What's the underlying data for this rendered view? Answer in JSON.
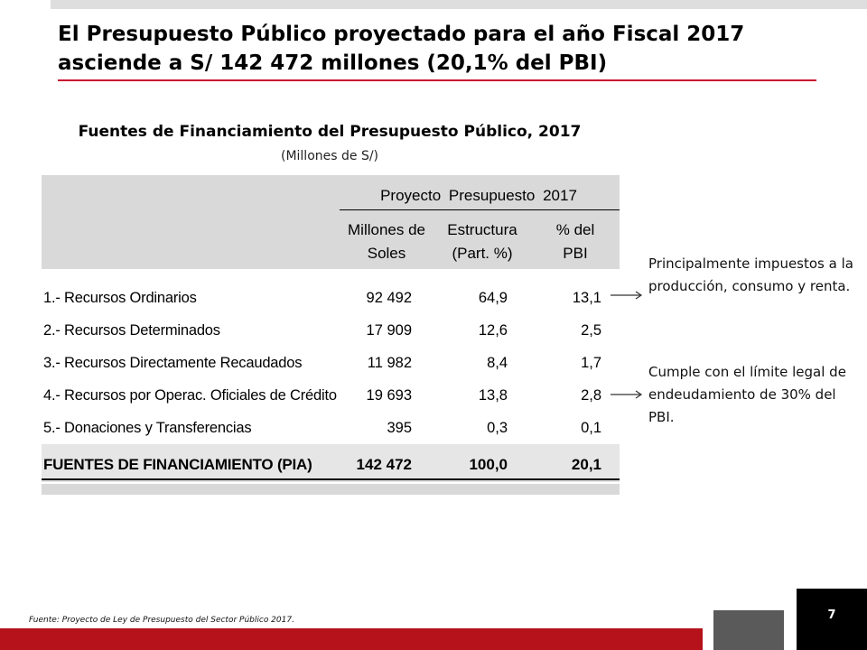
{
  "slide": {
    "title": "El Presupuesto Público proyectado para el año Fiscal 2017 asciende a S/ 142 472 millones (20,1% del PBI)",
    "page_number": "7",
    "source": "Fuente: Proyecto de Ley de Presupuesto del Sector Público 2017."
  },
  "table": {
    "title": "Fuentes de Financiamiento del Presupuesto Público, 2017",
    "subtitle": "(Millones de S/)",
    "group_header": "Proyecto Presupuesto 2017",
    "columns": [
      {
        "line1": "Millones de",
        "line2": "Soles"
      },
      {
        "line1": "Estructura",
        "line2": "(Part. %)"
      },
      {
        "line1": "% del",
        "line2": "PBI"
      }
    ],
    "rows": [
      {
        "label": "1.- Recursos Ordinarios",
        "millones": "92 492",
        "estructura": "64,9",
        "pbi": "13,1"
      },
      {
        "label": "2.- Recursos Determinados",
        "millones": "17 909",
        "estructura": "12,6",
        "pbi": "2,5"
      },
      {
        "label": "3.- Recursos Directamente Recaudados",
        "millones": "11 982",
        "estructura": "8,4",
        "pbi": "1,7"
      },
      {
        "label": "4.- Recursos por Operac. Oficiales de Crédito",
        "millones": "19 693",
        "estructura": "13,8",
        "pbi": "2,8"
      },
      {
        "label": "5.- Donaciones y Transferencias",
        "millones": "395",
        "estructura": "0,3",
        "pbi": "0,1"
      }
    ],
    "total": {
      "label": "FUENTES DE FINANCIAMIENTO (PIA)",
      "millones": "142 472",
      "estructura": "100,0",
      "pbi": "20,1"
    }
  },
  "notes": [
    "Principalmente impuestos a la producción, consumo y renta.",
    "Cumple con el límite legal de endeudamiento de 30% del PBI."
  ],
  "colors": {
    "accent_red": "#c8102e",
    "header_gray": "#d9d9d9",
    "footer_red": "#b5121b"
  }
}
